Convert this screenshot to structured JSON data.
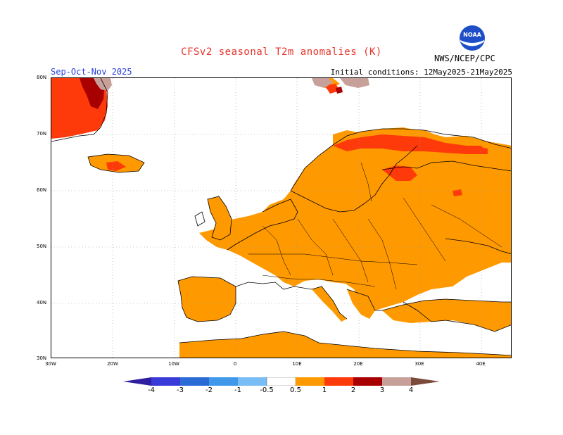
{
  "title": "CFSv2 seasonal T2m anomalies (K)",
  "period": "Sep-Oct-Nov 2025",
  "initial_conditions": "Initial conditions: 12May2025-21May2025",
  "agency": "NWS/NCEP/CPC",
  "logo_text": "NOAA",
  "map": {
    "lat_labels": [
      "80N",
      "70N",
      "60N",
      "50N",
      "40N",
      "30N"
    ],
    "lon_labels": [
      "30W",
      "20W",
      "10W",
      "0",
      "10E",
      "20E",
      "30E",
      "40E"
    ],
    "colors": {
      "anomaly_0_5_to_1": "#ff9900",
      "anomaly_1_to_2": "#ff3a0a",
      "anomaly_2_to_3": "#a80000",
      "anomaly_3_to_4": "#c8a09a",
      "coastline": "#000000",
      "grid": "#999999"
    }
  },
  "colorbar": {
    "labels": [
      "-4",
      "-3",
      "-2",
      "-1",
      "-0.5",
      "0.5",
      "1",
      "2",
      "3",
      "4"
    ],
    "colors": [
      "#2f1ea0",
      "#3a3ad8",
      "#2b6bd6",
      "#3f98ea",
      "#78bdf5",
      "#ffffff",
      "#ff9900",
      "#ff3a0a",
      "#a80000",
      "#c8a09a",
      "#7a4a3a"
    ]
  }
}
